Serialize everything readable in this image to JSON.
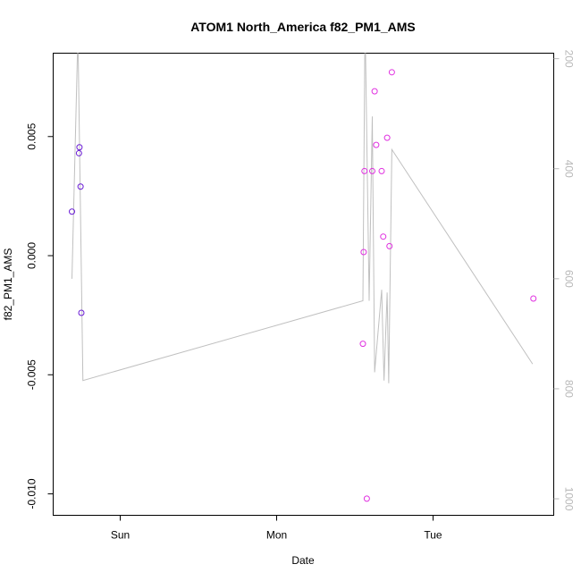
{
  "chart_data": {
    "type": "scatter",
    "title": "ATOM1 North_America f82_PM1_AMS",
    "xlabel": "Date",
    "ylabel": "f82_PM1_AMS",
    "x_axis": {
      "unit": "days",
      "range": [
        0,
        3.2
      ],
      "ticks": [
        {
          "value": 0.4286,
          "label": "Sun"
        },
        {
          "value": 1.4286,
          "label": "Mon"
        },
        {
          "value": 2.4286,
          "label": "Tue"
        }
      ]
    },
    "y_axis": {
      "range": [
        -0.0109,
        0.0085
      ],
      "ticks": [
        {
          "value": 0.005,
          "label": "0.005"
        },
        {
          "value": 0.0,
          "label": "0.000"
        },
        {
          "value": -0.005,
          "label": "-0.005"
        },
        {
          "value": -0.01,
          "label": "-0.010"
        }
      ]
    },
    "y2_axis": {
      "range": [
        1030,
        190
      ],
      "ticks": [
        {
          "value": 200,
          "label": "200"
        },
        {
          "value": 400,
          "label": "400"
        },
        {
          "value": 600,
          "label": "600"
        },
        {
          "value": 800,
          "label": "800"
        },
        {
          "value": 1000,
          "label": "1000"
        }
      ],
      "color": "#b8b8b8"
    },
    "series": [
      {
        "kind": "points",
        "axis": "left",
        "color": "#6a1bd6",
        "points": [
          {
            "x": 0.12,
            "y": 0.00185
          },
          {
            "x": 0.165,
            "y": 0.0043
          },
          {
            "x": 0.168,
            "y": 0.00455
          },
          {
            "x": 0.175,
            "y": 0.0029
          },
          {
            "x": 0.18,
            "y": -0.0024
          }
        ]
      },
      {
        "kind": "points",
        "axis": "left",
        "color": "#e030e0",
        "points": [
          {
            "x": 1.98,
            "y": -0.0037
          },
          {
            "x": 1.985,
            "y": 0.00015
          },
          {
            "x": 1.99,
            "y": 0.00355
          },
          {
            "x": 2.005,
            "y": -0.0102
          },
          {
            "x": 2.04,
            "y": 0.00355
          },
          {
            "x": 2.055,
            "y": 0.0069
          },
          {
            "x": 2.065,
            "y": 0.00465
          },
          {
            "x": 2.1,
            "y": 0.00355
          },
          {
            "x": 2.11,
            "y": 0.0008
          },
          {
            "x": 2.135,
            "y": 0.00495
          },
          {
            "x": 2.15,
            "y": 0.0004
          },
          {
            "x": 2.165,
            "y": 0.0077
          },
          {
            "x": 3.07,
            "y": -0.0018
          }
        ]
      },
      {
        "kind": "line",
        "axis": "right",
        "color": "#c0c0c0",
        "points": [
          {
            "x": 0.12,
            "y": 600
          },
          {
            "x": 0.155,
            "y": 190
          },
          {
            "x": 0.16,
            "y": 190
          },
          {
            "x": 0.19,
            "y": 785
          },
          {
            "x": 1.98,
            "y": 640
          },
          {
            "x": 1.992,
            "y": 190
          },
          {
            "x": 1.997,
            "y": 190
          },
          {
            "x": 2.02,
            "y": 640
          },
          {
            "x": 2.04,
            "y": 305
          },
          {
            "x": 2.055,
            "y": 770
          },
          {
            "x": 2.1,
            "y": 620
          },
          {
            "x": 2.115,
            "y": 785
          },
          {
            "x": 2.135,
            "y": 625
          },
          {
            "x": 2.145,
            "y": 790
          },
          {
            "x": 2.165,
            "y": 365
          },
          {
            "x": 3.065,
            "y": 755
          }
        ]
      }
    ]
  }
}
